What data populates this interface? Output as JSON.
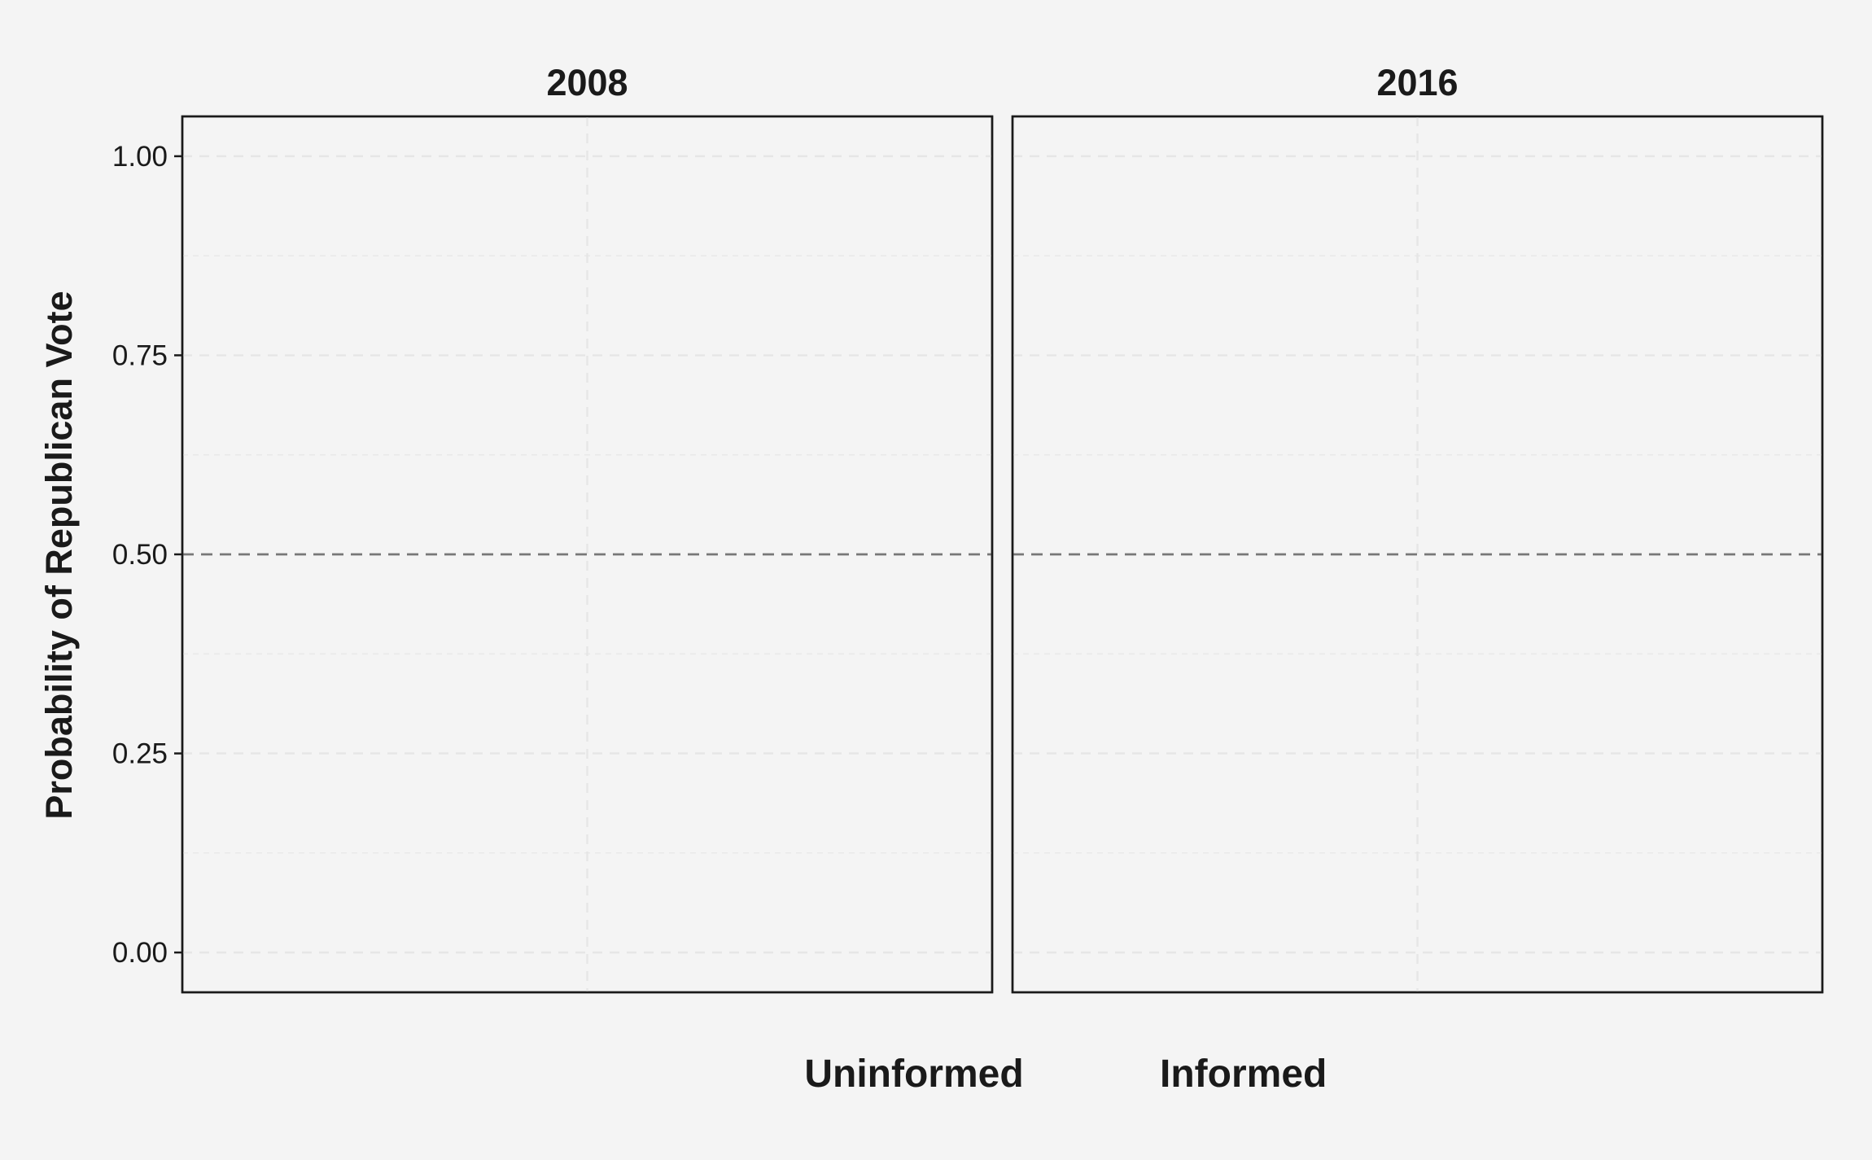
{
  "chart_data": {
    "type": "scatter",
    "ylabel": "Probability of Republican Vote",
    "xlabel": "",
    "ylim": [
      -0.05,
      1.05
    ],
    "yticks": [
      0,
      0.25,
      0.5,
      0.75,
      1
    ],
    "ytick_labels": [
      "0.00",
      "0.25",
      "0.50",
      "0.75",
      "1.00"
    ],
    "reference_line_y": 0.5,
    "grid": true,
    "legend_position": "bottom",
    "legend_items": [
      "Uninformed",
      "Informed"
    ],
    "panels": [
      {
        "title": "2008",
        "points": []
      },
      {
        "title": "2016",
        "points": []
      }
    ]
  }
}
